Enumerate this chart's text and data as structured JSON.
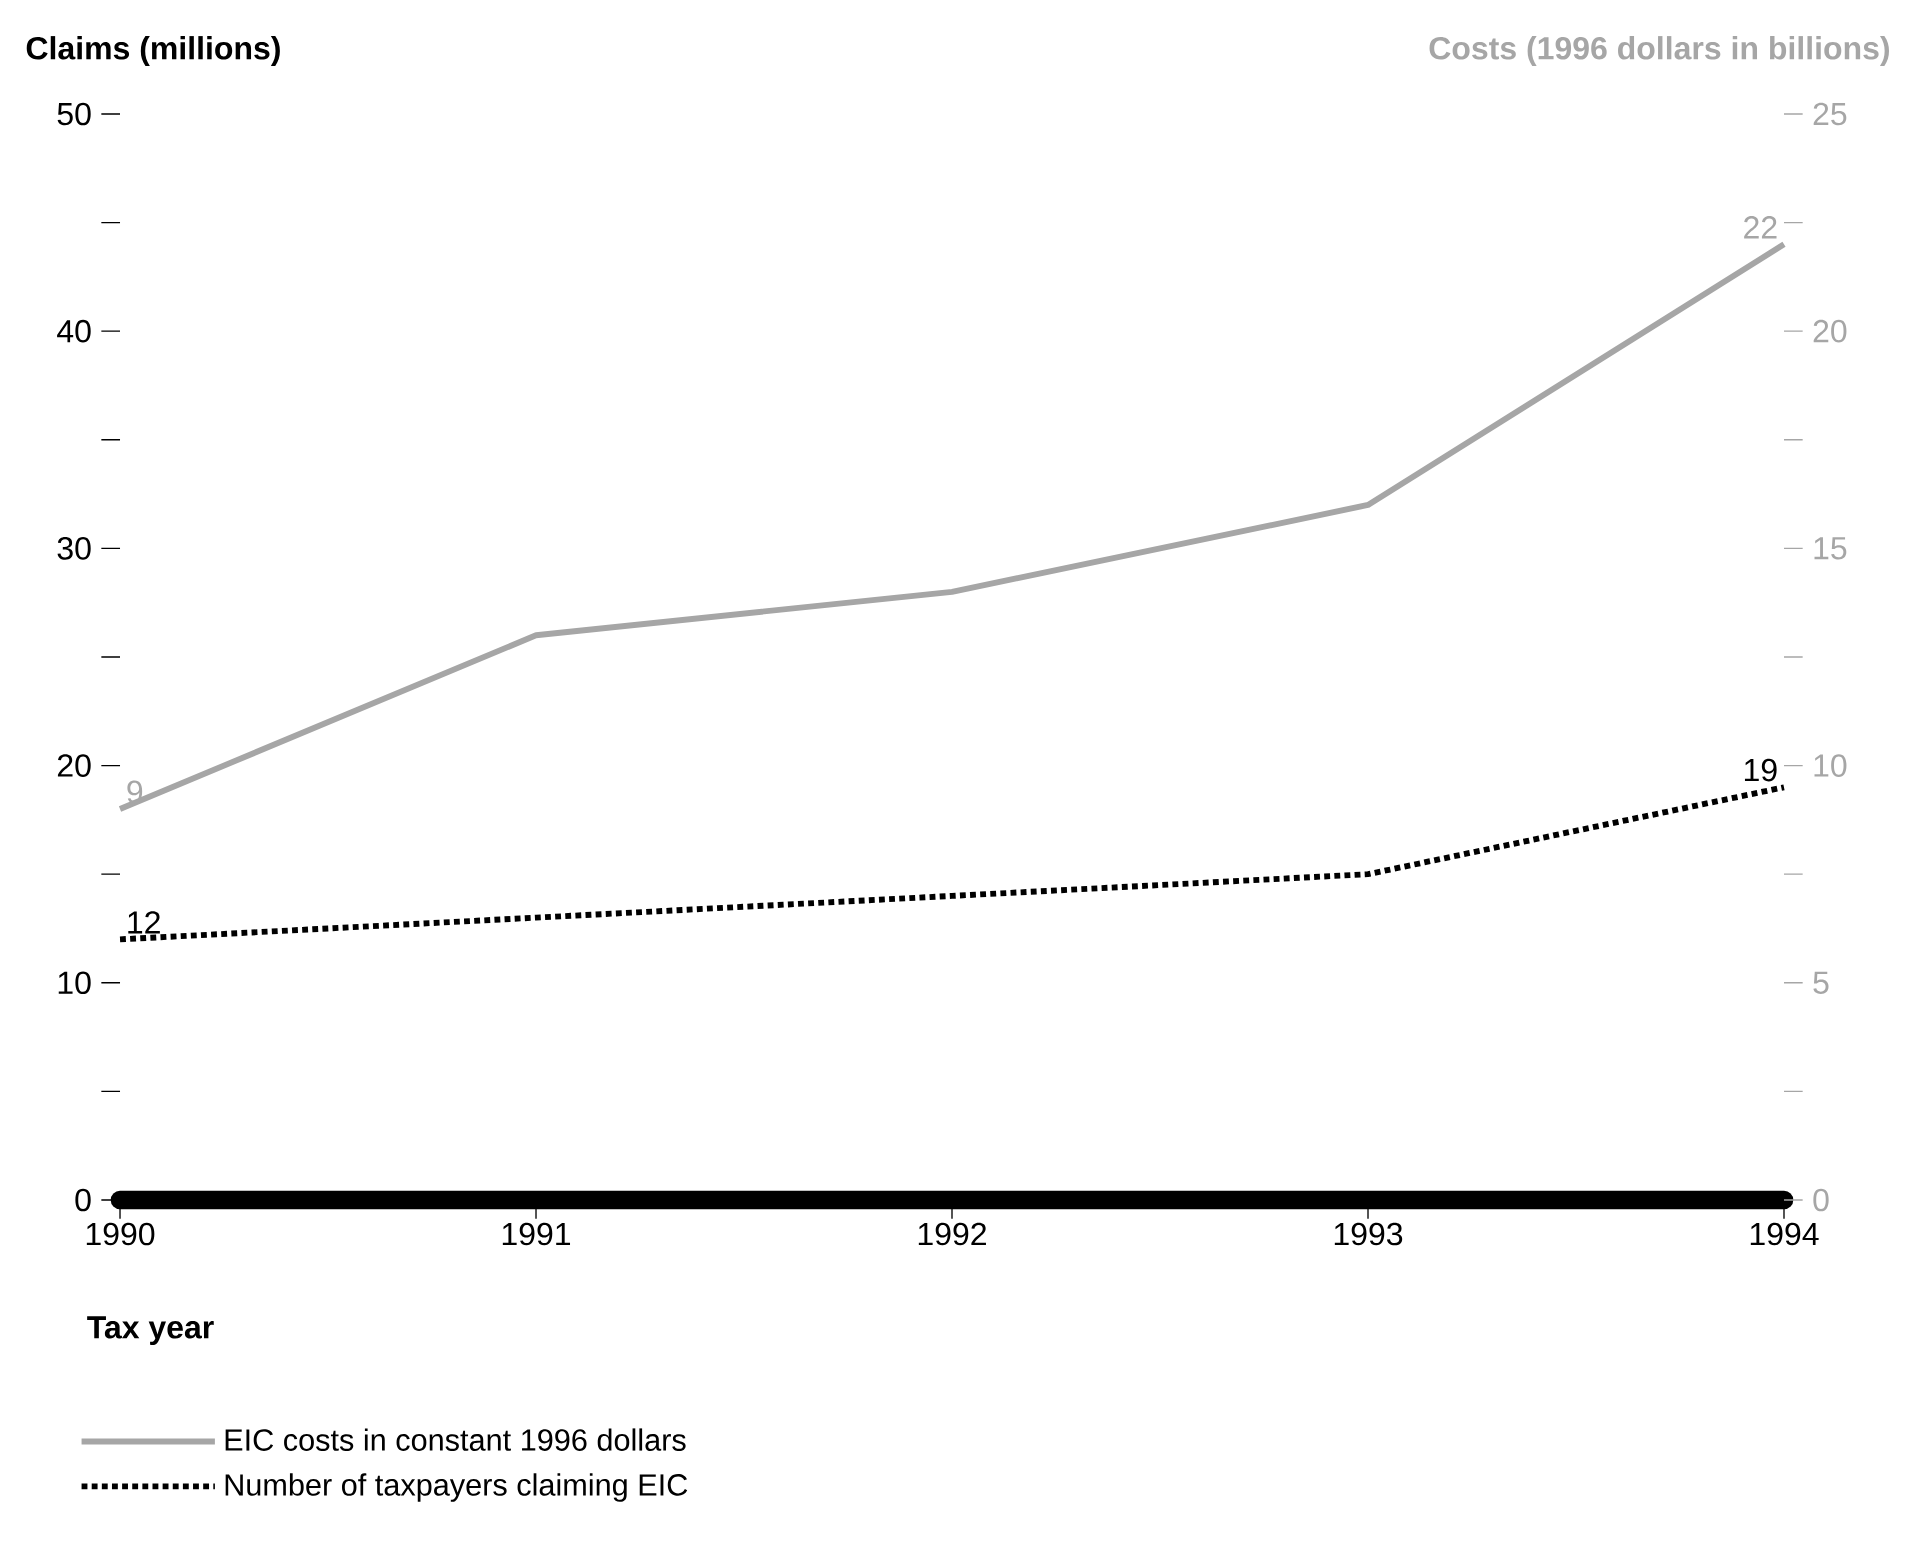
{
  "chart_data": {
    "type": "line",
    "xlabel": "Tax year",
    "ylabel": "Claims (millions)",
    "y2label": "Costs (1996 dollars in billions)",
    "categories": [
      "1990",
      "1991",
      "1992",
      "1993",
      "1994"
    ],
    "series": [
      {
        "name": "EIC costs in constant 1996 dollars",
        "color": "#a6a6a6",
        "axis": "y2",
        "line_style": "solid",
        "values": [
          9,
          13,
          14,
          16,
          22
        ],
        "value_labels": [
          "9",
          null,
          null,
          null,
          "22"
        ]
      },
      {
        "name": "Number of taxpayers claiming EIC",
        "color": "#000000",
        "line_style": "dotted",
        "values": [
          12,
          13,
          14,
          15,
          19
        ],
        "value_labels": [
          "12",
          null,
          null,
          null,
          "19"
        ]
      }
    ],
    "ylim": [
      0,
      50
    ],
    "yticks": [
      0,
      {
        "value": 5,
        "label": null
      },
      10,
      {
        "value": 15,
        "label": null
      },
      20,
      {
        "value": 25,
        "label": null
      },
      30,
      {
        "value": 35,
        "label": null
      },
      40,
      {
        "value": 45,
        "label": null
      },
      50
    ],
    "y2lim": [
      0,
      25
    ],
    "y2ticks": [
      0,
      {
        "value": 2.5,
        "label": null
      },
      5,
      {
        "value": 7.5,
        "label": null
      },
      10,
      {
        "value": 12.5,
        "label": null
      },
      15,
      {
        "value": 17.5,
        "label": null
      },
      20,
      {
        "value": 22.5,
        "label": null
      },
      25
    ],
    "legend": "bottom"
  }
}
